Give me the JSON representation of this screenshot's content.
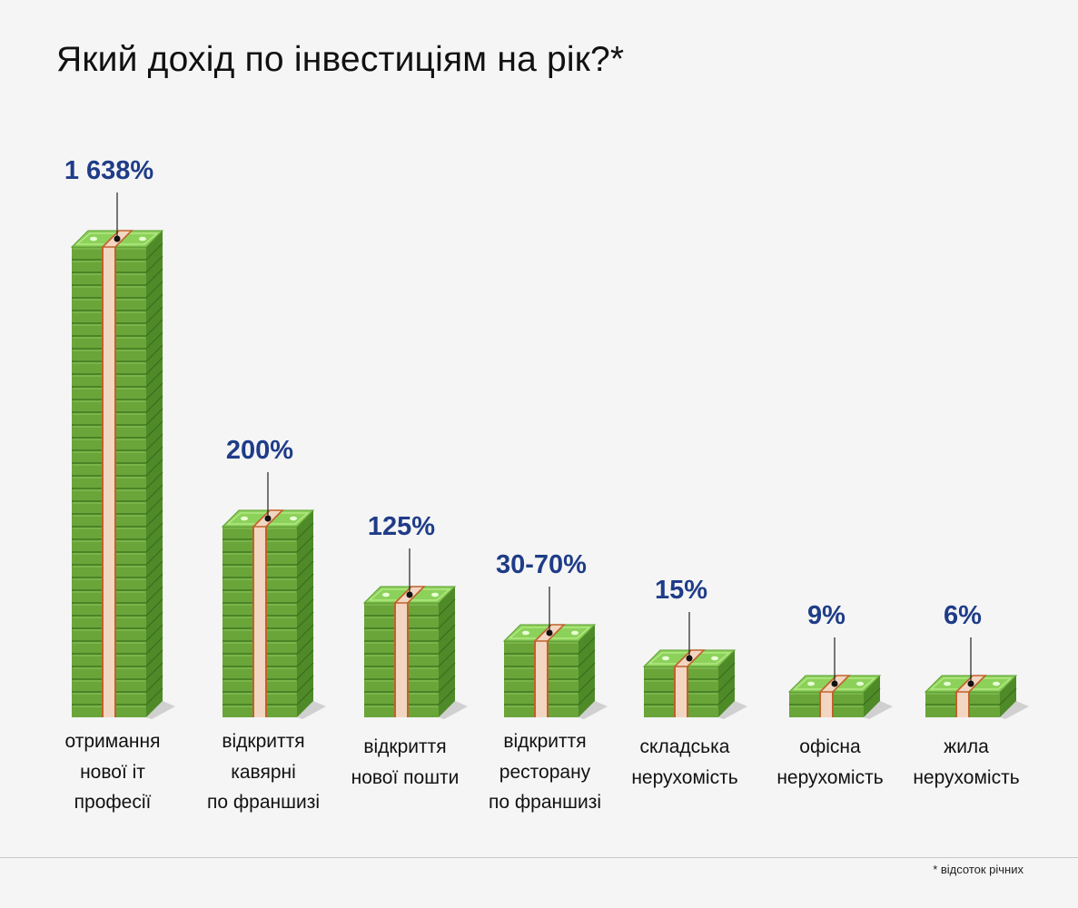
{
  "chart_data": {
    "type": "bar",
    "title": "Який дохід по інвестиціям на рік?*",
    "categories": [
      [
        "отримання",
        "нової іт",
        "професії"
      ],
      [
        "відкриття",
        "кавярні",
        "по франшизі"
      ],
      [
        "відкриття",
        "нової пошти"
      ],
      [
        "відкриття",
        "ресторану",
        "по франшизі"
      ],
      [
        "складська",
        "нерухомість"
      ],
      [
        "офісна",
        "нерухомість"
      ],
      [
        "жила",
        "нерухомість"
      ]
    ],
    "value_labels": [
      "1 638%",
      "200%",
      "125%",
      "30-70%",
      "15%",
      "9%",
      "6%"
    ],
    "stack_counts": [
      37,
      15,
      9,
      6,
      4,
      2,
      2
    ],
    "xlabel": "",
    "ylabel": "",
    "footnote": "* відсоток річних",
    "colors": {
      "bill_front": "#6aa53a",
      "bill_side": "#4f8a28",
      "bill_top": "#8cd15a",
      "bill_line": "#3f7a20",
      "band": "#f2d6c2",
      "band_edge": "#c0622a",
      "label": "#1f3c88"
    }
  }
}
